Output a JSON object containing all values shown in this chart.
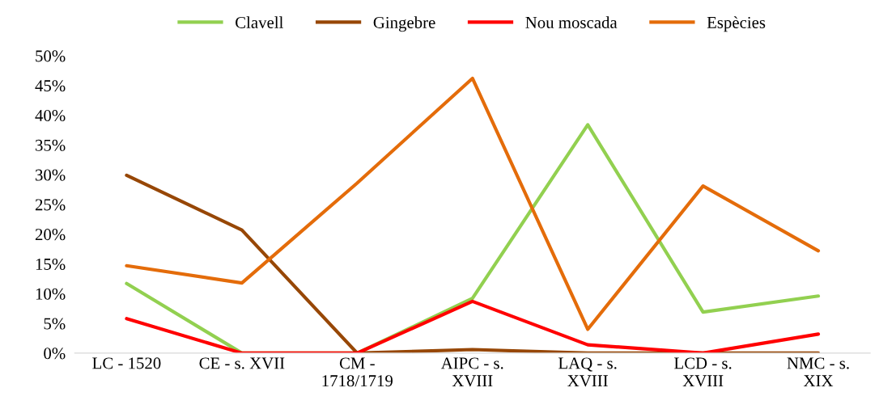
{
  "chart_data": {
    "type": "line",
    "categories": [
      "LC - 1520",
      "CE - s. XVII",
      "CM -\n1718/1719",
      "AIPC - s.\nXVIII",
      "LAQ - s.\nXVIII",
      "LCD - s.\nXVIII",
      "NMC - s.\nXIX"
    ],
    "series": [
      {
        "name": "Clavell",
        "color": "#92d050",
        "values": [
          11.7,
          0,
          0,
          9.2,
          38.4,
          6.9,
          9.6
        ]
      },
      {
        "name": "Gingebre",
        "color": "#974706",
        "values": [
          29.9,
          20.7,
          0,
          0.6,
          0,
          0,
          0
        ]
      },
      {
        "name": "Nou moscada",
        "color": "#ff0000",
        "values": [
          5.8,
          0,
          0,
          8.7,
          1.4,
          0,
          3.2
        ]
      },
      {
        "name": "Espècies",
        "color": "#e46c0a",
        "values": [
          14.7,
          11.8,
          28.6,
          46.2,
          4.0,
          28.1,
          17.2
        ]
      }
    ],
    "ylim": [
      0,
      50
    ],
    "yticks": [
      {
        "value": 0,
        "label": "0%"
      },
      {
        "value": 5,
        "label": "5%"
      },
      {
        "value": 10,
        "label": "10%"
      },
      {
        "value": 15,
        "label": "15%"
      },
      {
        "value": 20,
        "label": "20%"
      },
      {
        "value": 25,
        "label": "25%"
      },
      {
        "value": 30,
        "label": "30%"
      },
      {
        "value": 35,
        "label": "35%"
      },
      {
        "value": 40,
        "label": "40%"
      },
      {
        "value": 45,
        "label": "45%"
      },
      {
        "value": 50,
        "label": "50%"
      }
    ],
    "legend": "top",
    "grid": false,
    "marker": "none",
    "line_style": "solid"
  }
}
